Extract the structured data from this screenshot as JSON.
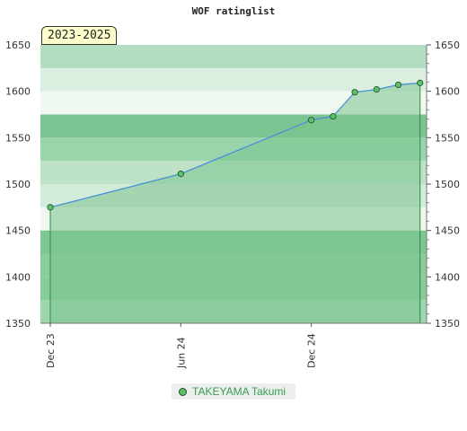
{
  "chart_data": {
    "type": "area",
    "title": "WOF ratinglist",
    "period": "2023-2025",
    "ylim": [
      1350,
      1650
    ],
    "y_ticks": [
      1350,
      1400,
      1450,
      1500,
      1550,
      1600,
      1650
    ],
    "x_ticks": [
      "Dec 23",
      "Jun 24",
      "Dec 24"
    ],
    "x_tick_index": [
      0,
      6,
      12
    ],
    "x_index_range": [
      0,
      17.3
    ],
    "series": [
      {
        "name": "TAKEYAMA Takumi",
        "x_index": [
          0,
          6,
          12,
          13,
          14,
          15,
          16,
          17
        ],
        "values": [
          1475,
          1511,
          1569,
          1573,
          1599,
          1602,
          1607,
          1609
        ]
      }
    ],
    "colors": {
      "line": "#4a90d9",
      "fill": "#7cc48e",
      "marker": "#5cbf6e",
      "marker_stroke": "#1c4d25",
      "legend_text": "#33a04d"
    },
    "grid": true,
    "legend_position": "bottom"
  }
}
